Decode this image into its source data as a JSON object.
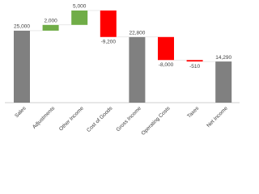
{
  "chart_data": {
    "type": "waterfall",
    "categories": [
      "Sales",
      "Adjustments",
      "Other Income",
      "Cost of Goods",
      "Gross Income",
      "Operating Costs",
      "Taxes",
      "Net Income"
    ],
    "values": [
      25000,
      2000,
      5000,
      -9200,
      22800,
      -8000,
      -510,
      14290
    ],
    "value_labels": [
      "25,000",
      "2,000",
      "5,000",
      "-9,200",
      "22,800",
      "-8,000",
      "-510",
      "14,290"
    ],
    "is_total": [
      true,
      false,
      false,
      false,
      true,
      false,
      false,
      true
    ],
    "colors": [
      "#808080",
      "#70ad47",
      "#70ad47",
      "#ff0000",
      "#808080",
      "#ff0000",
      "#ff0000",
      "#808080"
    ]
  }
}
